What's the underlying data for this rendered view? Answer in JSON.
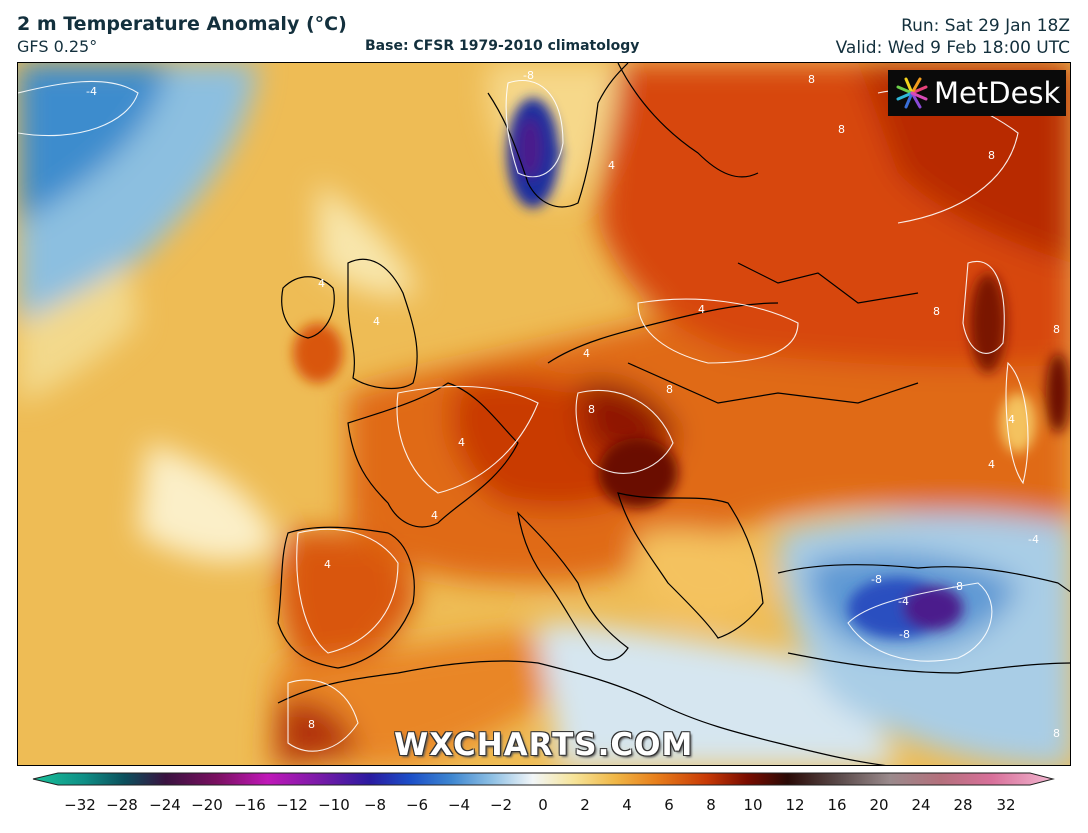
{
  "header": {
    "title": "2 m Temperature Anomaly (°C)",
    "model": "GFS 0.25°",
    "base": "Base: CFSR 1979-2010 climatology",
    "run": "Run: Sat 29 Jan 18Z",
    "valid": "Valid: Wed 9 Feb 18:00 UTC"
  },
  "brand": {
    "name": "MetDesk",
    "icon": "metdesk-logo-icon"
  },
  "watermark": "WXCHARTS.COM",
  "colorbar": {
    "ticks": [
      "−32",
      "−28",
      "−24",
      "−20",
      "−16",
      "−12",
      "−10",
      "−8",
      "−6",
      "−4",
      "−2",
      "0",
      "2",
      "4",
      "6",
      "8",
      "10",
      "12",
      "16",
      "20",
      "24",
      "28",
      "32"
    ]
  },
  "contour_labels": [
    "-4",
    "-8",
    "4",
    "8"
  ],
  "colors": {
    "very_warm": "#8c1a00",
    "warm": "#d64a00",
    "mild": "#f0922a",
    "slightly_warm": "#f5c866",
    "neutral": "#fbeec0",
    "cool": "#cfe4f2",
    "cold": "#6fa8d8",
    "very_cold": "#2a5cc8",
    "extreme_cold": "#4b1a8c"
  }
}
